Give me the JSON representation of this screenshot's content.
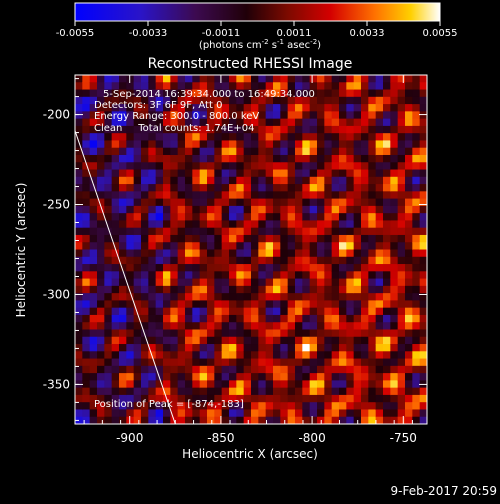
{
  "chart_data": {
    "type": "heatmap",
    "title": "Reconstructed RHESSI Image",
    "xlabel": "Heliocentric X (arcsec)",
    "ylabel": "Heliocentric Y (arcsec)",
    "xlim": [
      -930,
      -737
    ],
    "ylim": [
      -372,
      -178
    ],
    "x_ticks": [
      -900,
      -850,
      -800,
      -750
    ],
    "y_ticks": [
      -200,
      -250,
      -300,
      -350
    ],
    "colorbar": {
      "min": -0.0055,
      "max": 0.0055,
      "ticks": [
        "-0.0055",
        "-0.0033",
        "-0.0011",
        "0.0011",
        "0.0033",
        "0.0055"
      ],
      "units_label": "(photons cm",
      "units_sup1": "-2",
      "units_mid": " s",
      "units_sup2": "-1",
      "units_mid2": " asec",
      "units_sup3": "-2",
      "units_end": ")"
    },
    "annotations": {
      "time_range": "5-Sep-2014 16:39:34.000 to 16:49:34.000",
      "detectors": "Detectors: 3F 6F 9F, Att 0",
      "energy": "Energy Range: 300.0 - 800.0 keV",
      "clean": "Clean     Total counts: 1.74E+04",
      "peak": "Position of Peak = [-874,-183]"
    },
    "timestamp": "9-Feb-2017 20:59",
    "limb": {
      "x_top": -932,
      "x_bottom": -875
    }
  }
}
